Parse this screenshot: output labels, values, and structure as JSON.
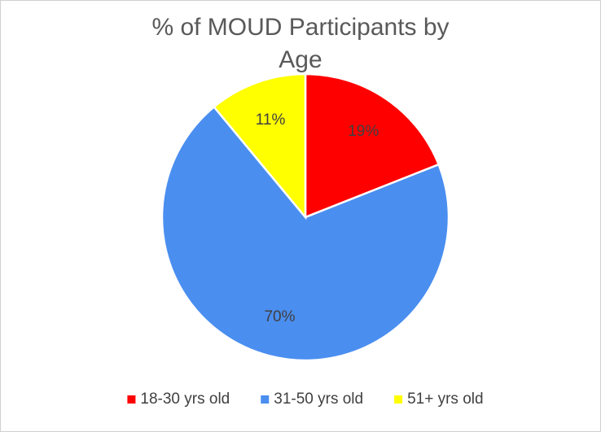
{
  "chart_data": {
    "type": "pie",
    "title": "% of MOUD Participants by Age",
    "categories": [
      "18-30 yrs old",
      "31-50 yrs old",
      "51+ yrs old"
    ],
    "values": [
      19,
      70,
      11
    ],
    "value_labels": [
      "19%",
      "70%",
      "11%"
    ],
    "colors": [
      "#ff0000",
      "#4a8ef0",
      "#ffff00"
    ],
    "legend": "bottom"
  }
}
